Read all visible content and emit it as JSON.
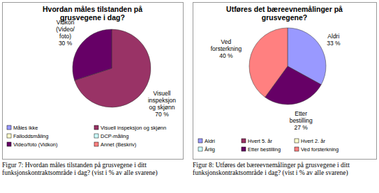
{
  "chart_data": [
    {
      "type": "pie",
      "title": "Hvordan måles tilstanden på grusvegene i dag?",
      "categories": [
        "Måles ikke",
        "Visuell inspeksjon og skjønn",
        "Falloddsmåling",
        "DCP-måling",
        "Video/foto (Vidkon)",
        "Annet (Beskriv)"
      ],
      "values": [
        0,
        70,
        0,
        0,
        30,
        0
      ],
      "value_labels": [
        null,
        "70 %",
        null,
        null,
        "30 %",
        null
      ],
      "slice_labels": [
        null,
        "Visuell inspeksjon og skjønn",
        null,
        null,
        "Vidkon (Video/ foto)",
        null
      ],
      "colors": [
        "#9999ff",
        "#993366",
        "#ffffcc",
        "#ccffff",
        "#660066",
        "#ff8080"
      ],
      "data_labels": true,
      "legend": "bottom",
      "caption": "Figur 7: Hvordan måles tilstanden på grusvegene i ditt funksjonskontraktsområde i dag? (vist i % av alle svarene)"
    },
    {
      "type": "pie",
      "title": "Utføres det bæreevnemålinger på grusvegene?",
      "categories": [
        "Aldri",
        "Hvert 5. år",
        "Hvert 2. år",
        "Årlig",
        "Etter bestilling",
        "Ved forsterkning"
      ],
      "values": [
        33,
        0,
        0,
        0,
        27,
        40
      ],
      "value_labels": [
        "33 %",
        null,
        null,
        null,
        "27 %",
        "40 %"
      ],
      "colors": [
        "#9999ff",
        "#993366",
        "#ffffcc",
        "#ccffff",
        "#660066",
        "#ff8080"
      ],
      "data_labels": true,
      "legend": "bottom",
      "caption": "Figur 8: Utføres det bæreevnemålinger på grusvegene i ditt funksjonskontraktsområde i dag? (vist i % av alle svarene)"
    }
  ]
}
